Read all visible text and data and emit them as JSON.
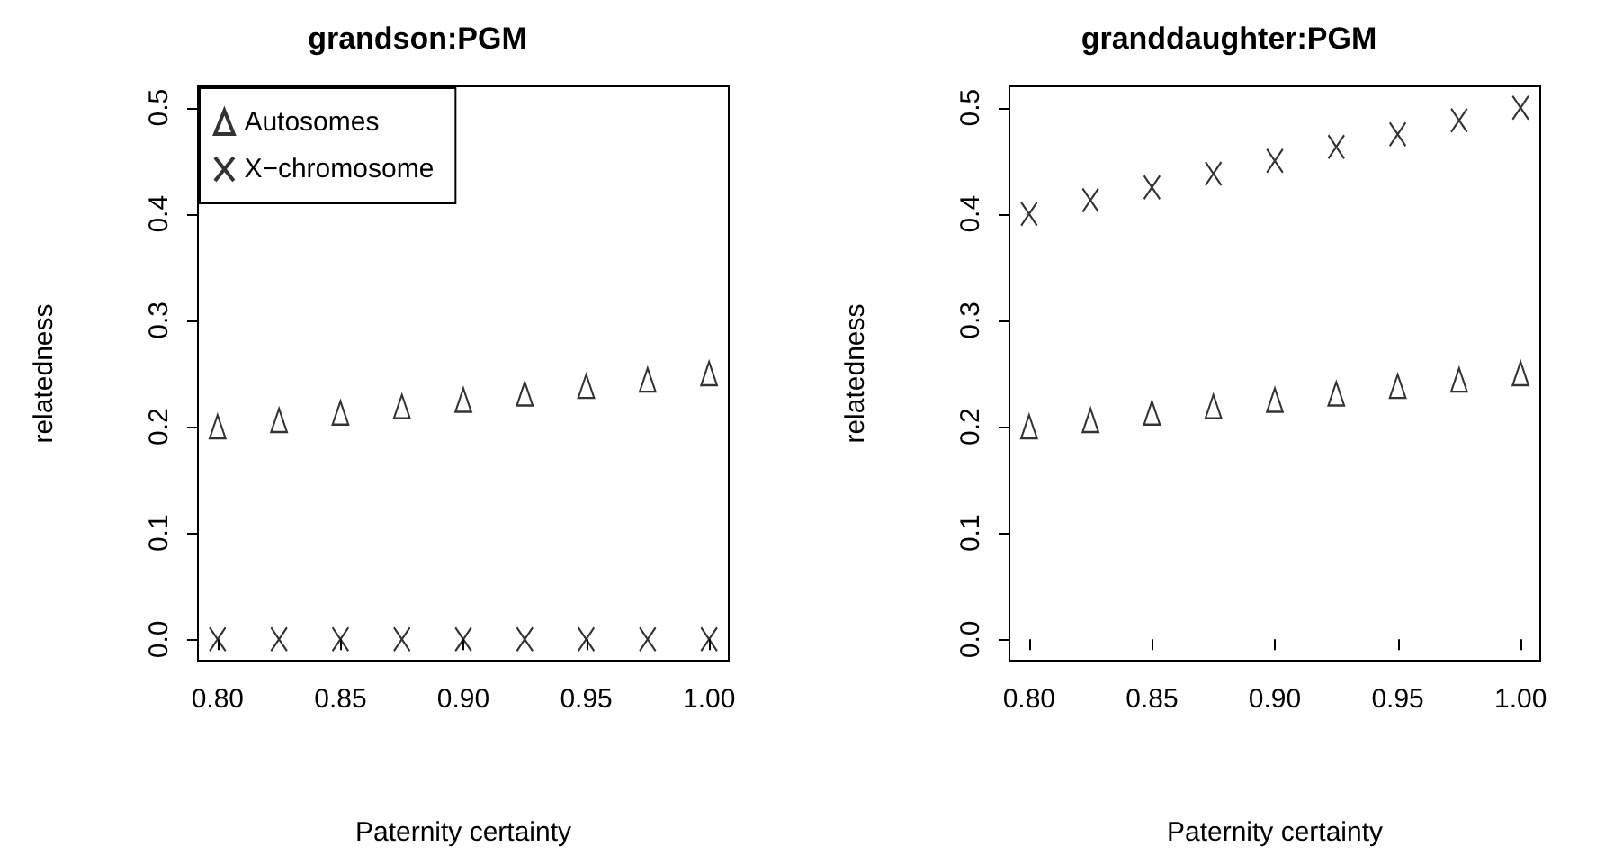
{
  "chart_data": [
    {
      "type": "scatter",
      "title": "grandson:PGM",
      "xlabel": "Paternity certainty",
      "ylabel": "relatedness",
      "x": [
        0.8,
        0.825,
        0.85,
        0.875,
        0.9,
        0.925,
        0.95,
        0.975,
        1.0
      ],
      "series": [
        {
          "name": "Autosomes",
          "color": "#000000",
          "marker": "triangle",
          "values": [
            0.2,
            0.206,
            0.213,
            0.219,
            0.225,
            0.231,
            0.238,
            0.244,
            0.25
          ]
        },
        {
          "name": "X−chromosome",
          "color": "#000000",
          "marker": "cross",
          "values": [
            0,
            0,
            0,
            0,
            0,
            0,
            0,
            0,
            0
          ]
        }
      ],
      "xlim": [
        0.792,
        1.008
      ],
      "xticks": [
        {
          "value": 0.8,
          "label": "0.80"
        },
        {
          "value": 0.85,
          "label": "0.85"
        },
        {
          "value": 0.9,
          "label": "0.90"
        },
        {
          "value": 0.95,
          "label": "0.95"
        },
        {
          "value": 1.0,
          "label": "1.00"
        }
      ],
      "ylim": [
        -0.02,
        0.52
      ],
      "yticks": [
        {
          "value": 0,
          "label": "0.0"
        },
        {
          "value": 0.1,
          "label": "0.1"
        },
        {
          "value": 0.2,
          "label": "0.2"
        },
        {
          "value": 0.3,
          "label": "0.3"
        },
        {
          "value": 0.4,
          "label": "0.4"
        },
        {
          "value": 0.5,
          "label": "0.5"
        }
      ],
      "grid": false,
      "legend": "top left"
    },
    {
      "type": "scatter",
      "title": "granddaughter:PGM",
      "xlabel": "Paternity certainty",
      "ylabel": "relatedness",
      "x": [
        0.8,
        0.825,
        0.85,
        0.875,
        0.9,
        0.925,
        0.95,
        0.975,
        1.0
      ],
      "series": [
        {
          "color": "#000000",
          "marker": "triangle",
          "values": [
            0.2,
            0.206,
            0.213,
            0.219,
            0.225,
            0.231,
            0.238,
            0.244,
            0.25
          ]
        },
        {
          "color": "#000000",
          "marker": "cross",
          "values": [
            0.4,
            0.413,
            0.425,
            0.438,
            0.45,
            0.463,
            0.475,
            0.488,
            0.5
          ]
        }
      ],
      "xlim": [
        0.792,
        1.008
      ],
      "xticks": [
        {
          "value": 0.8,
          "label": "0.80"
        },
        {
          "value": 0.85,
          "label": "0.85"
        },
        {
          "value": 0.9,
          "label": "0.90"
        },
        {
          "value": 0.95,
          "label": "0.95"
        },
        {
          "value": 1.0,
          "label": "1.00"
        }
      ],
      "ylim": [
        -0.02,
        0.52
      ],
      "yticks": [
        {
          "value": 0,
          "label": "0.0"
        },
        {
          "value": 0.1,
          "label": "0.1"
        },
        {
          "value": 0.2,
          "label": "0.2"
        },
        {
          "value": 0.3,
          "label": "0.3"
        },
        {
          "value": 0.4,
          "label": "0.4"
        },
        {
          "value": 0.5,
          "label": "0.5"
        }
      ],
      "grid": false,
      "legend": false
    }
  ]
}
